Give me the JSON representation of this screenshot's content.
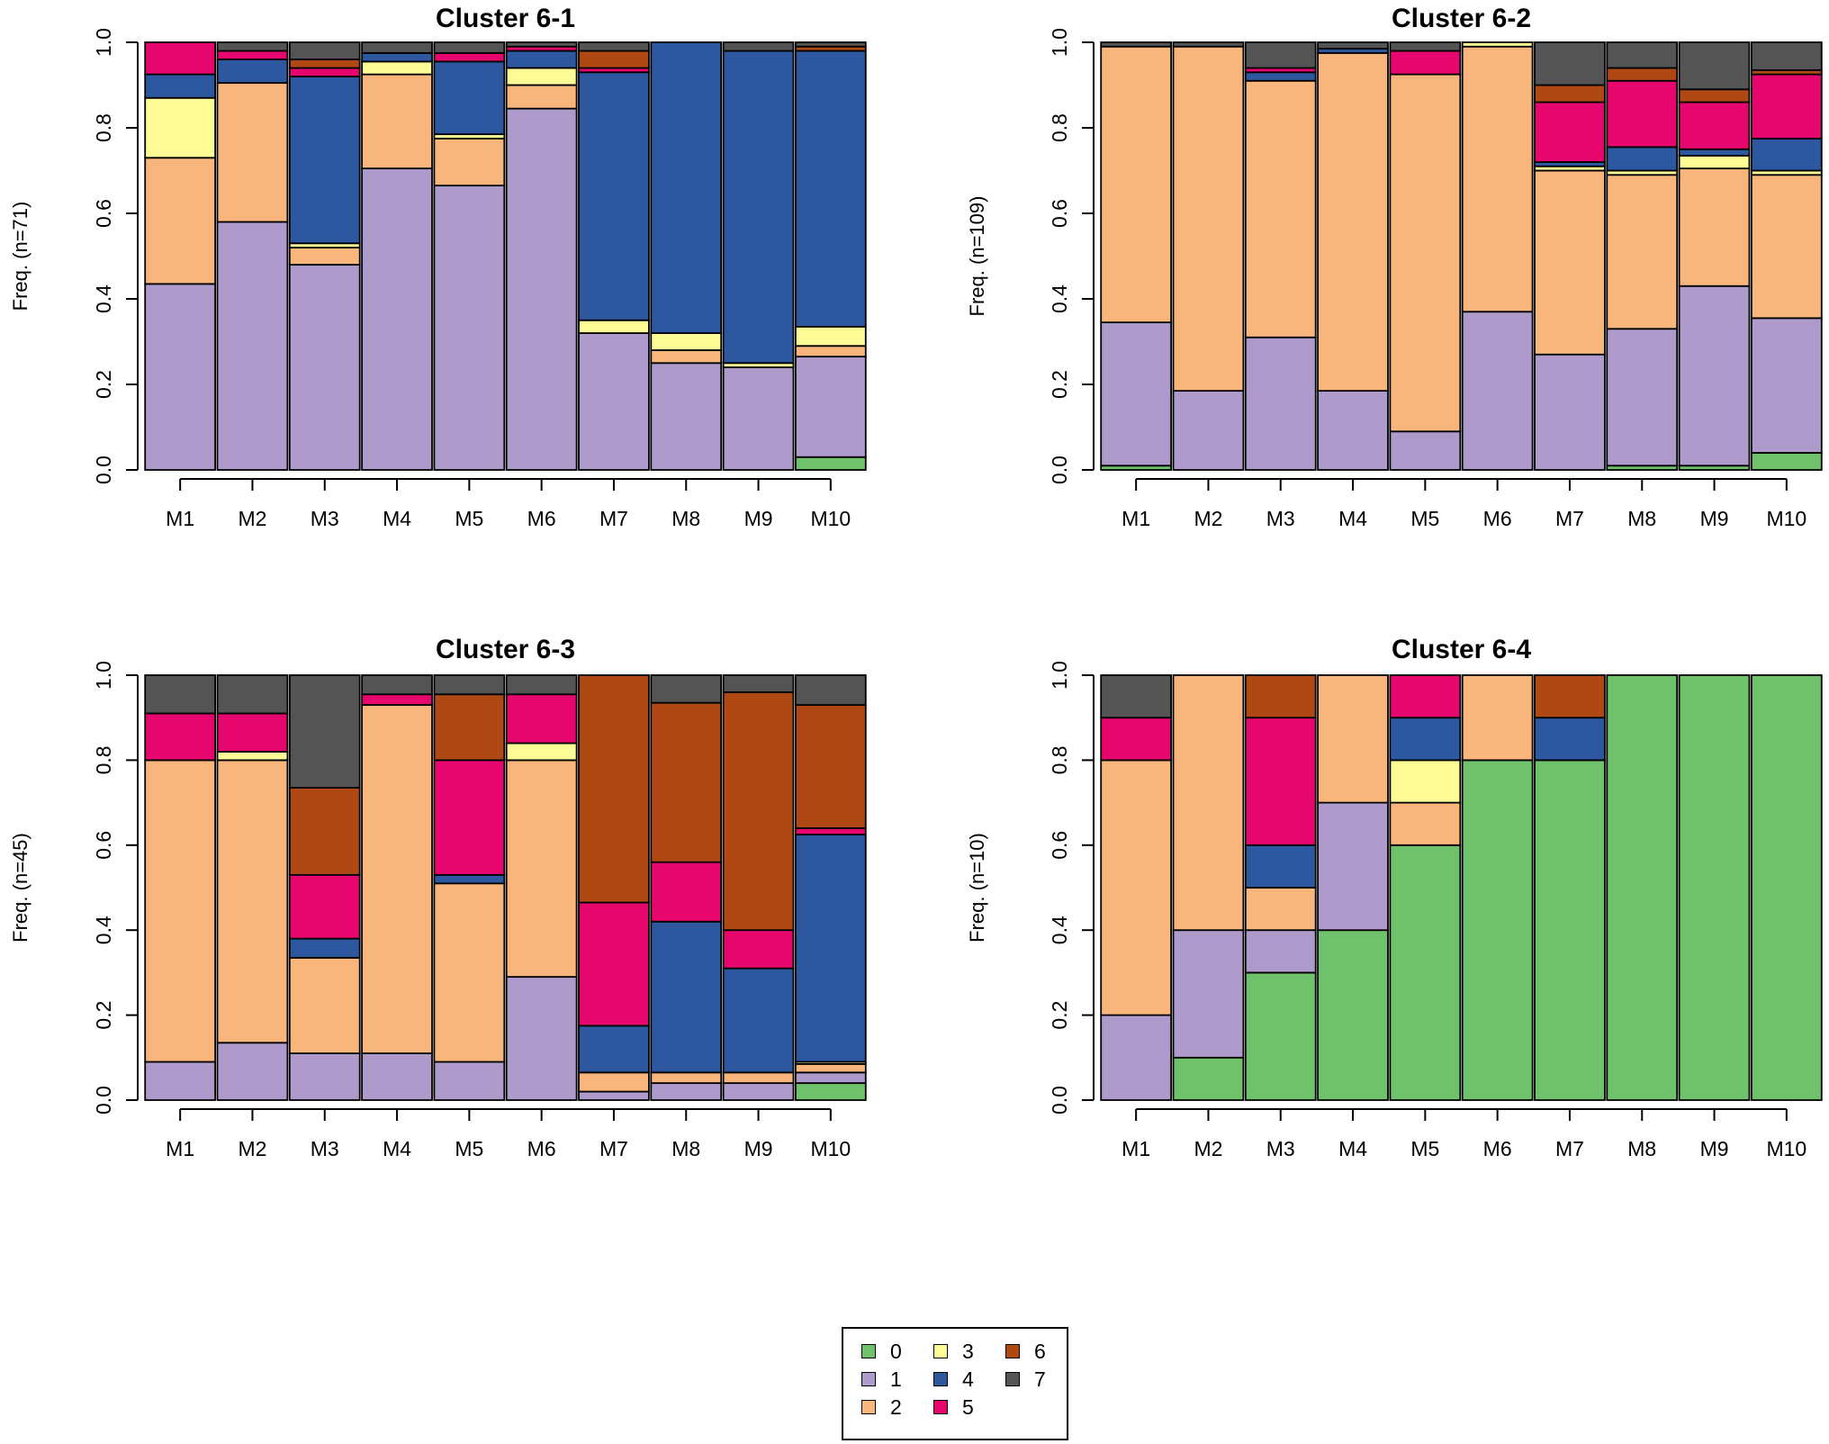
{
  "legend": {
    "items": [
      {
        "label": "0",
        "color": "#6fc26b"
      },
      {
        "label": "1",
        "color": "#ae9bcb"
      },
      {
        "label": "2",
        "color": "#f8b57c"
      },
      {
        "label": "3",
        "color": "#fcfb96"
      },
      {
        "label": "4",
        "color": "#2d58a0"
      },
      {
        "label": "5",
        "color": "#e6066e"
      },
      {
        "label": "6",
        "color": "#b04813"
      },
      {
        "label": "7",
        "color": "#545454"
      }
    ]
  },
  "chart_data": [
    {
      "type": "bar",
      "stacked": true,
      "title": "Cluster 6-1",
      "ylabel": "Freq. (n=71)",
      "ylim": [
        0,
        1
      ],
      "yticks": [
        "0.0",
        "0.2",
        "0.4",
        "0.6",
        "0.8",
        "1.0"
      ],
      "categories": [
        "M1",
        "M2",
        "M3",
        "M4",
        "M5",
        "M6",
        "M7",
        "M8",
        "M9",
        "M10"
      ],
      "series": [
        {
          "name": "0",
          "values": [
            0,
            0,
            0,
            0,
            0,
            0,
            0,
            0,
            0,
            0.03
          ]
        },
        {
          "name": "1",
          "values": [
            0.435,
            0.58,
            0.48,
            0.705,
            0.665,
            0.845,
            0.32,
            0.25,
            0.24,
            0.235
          ]
        },
        {
          "name": "2",
          "values": [
            0.295,
            0.325,
            0.04,
            0.22,
            0.11,
            0.055,
            0,
            0.03,
            0,
            0.025
          ]
        },
        {
          "name": "3",
          "values": [
            0.14,
            0,
            0.01,
            0.03,
            0.01,
            0.04,
            0.03,
            0.04,
            0.01,
            0.045
          ]
        },
        {
          "name": "4",
          "values": [
            0.055,
            0.055,
            0.39,
            0.02,
            0.17,
            0.04,
            0.58,
            0.68,
            0.73,
            0.645
          ]
        },
        {
          "name": "5",
          "values": [
            0.075,
            0.02,
            0.02,
            0,
            0.02,
            0.01,
            0.01,
            0,
            0,
            0
          ]
        },
        {
          "name": "6",
          "values": [
            0,
            0,
            0.02,
            0,
            0,
            0,
            0.04,
            0,
            0,
            0.01
          ]
        },
        {
          "name": "7",
          "values": [
            0,
            0.02,
            0.04,
            0.025,
            0.025,
            0.01,
            0.02,
            0,
            0.02,
            0.01
          ]
        }
      ]
    },
    {
      "type": "bar",
      "stacked": true,
      "title": "Cluster 6-2",
      "ylabel": "Freq. (n=109)",
      "ylim": [
        0,
        1
      ],
      "yticks": [
        "0.0",
        "0.2",
        "0.4",
        "0.6",
        "0.8",
        "1.0"
      ],
      "categories": [
        "M1",
        "M2",
        "M3",
        "M4",
        "M5",
        "M6",
        "M7",
        "M8",
        "M9",
        "M10"
      ],
      "series": [
        {
          "name": "0",
          "values": [
            0.01,
            0,
            0,
            0,
            0,
            0,
            0,
            0.01,
            0.01,
            0.04
          ]
        },
        {
          "name": "1",
          "values": [
            0.335,
            0.185,
            0.31,
            0.185,
            0.09,
            0.37,
            0.27,
            0.32,
            0.42,
            0.315
          ]
        },
        {
          "name": "2",
          "values": [
            0.645,
            0.805,
            0.6,
            0.79,
            0.835,
            0.62,
            0.43,
            0.36,
            0.275,
            0.335
          ]
        },
        {
          "name": "3",
          "values": [
            0,
            0,
            0,
            0,
            0,
            0.01,
            0.01,
            0.01,
            0.03,
            0.01
          ]
        },
        {
          "name": "4",
          "values": [
            0,
            0,
            0.02,
            0.01,
            0,
            0,
            0.01,
            0.055,
            0.015,
            0.075
          ]
        },
        {
          "name": "5",
          "values": [
            0,
            0,
            0.01,
            0,
            0.055,
            0,
            0.14,
            0.155,
            0.11,
            0.15
          ]
        },
        {
          "name": "6",
          "values": [
            0,
            0,
            0,
            0,
            0,
            0,
            0.04,
            0.03,
            0.03,
            0.01
          ]
        },
        {
          "name": "7",
          "values": [
            0.01,
            0.01,
            0.06,
            0.015,
            0.02,
            0,
            0.1,
            0.06,
            0.11,
            0.065
          ]
        }
      ]
    },
    {
      "type": "bar",
      "stacked": true,
      "title": "Cluster 6-3",
      "ylabel": "Freq. (n=45)",
      "ylim": [
        0,
        1
      ],
      "yticks": [
        "0.0",
        "0.2",
        "0.4",
        "0.6",
        "0.8",
        "1.0"
      ],
      "categories": [
        "M1",
        "M2",
        "M3",
        "M4",
        "M5",
        "M6",
        "M7",
        "M8",
        "M9",
        "M10"
      ],
      "series": [
        {
          "name": "0",
          "values": [
            0,
            0,
            0,
            0,
            0,
            0,
            0,
            0,
            0,
            0.04
          ]
        },
        {
          "name": "1",
          "values": [
            0.09,
            0.135,
            0.11,
            0.11,
            0.09,
            0.29,
            0.02,
            0.04,
            0.04,
            0.025
          ]
        },
        {
          "name": "2",
          "values": [
            0.71,
            0.665,
            0.225,
            0.82,
            0.42,
            0.51,
            0.045,
            0.025,
            0.025,
            0.02
          ]
        },
        {
          "name": "3",
          "values": [
            0,
            0.02,
            0,
            0,
            0,
            0.04,
            0,
            0,
            0,
            0.005
          ]
        },
        {
          "name": "4",
          "values": [
            0,
            0,
            0.045,
            0,
            0.02,
            0,
            0.11,
            0.355,
            0.245,
            0.535
          ]
        },
        {
          "name": "5",
          "values": [
            0.11,
            0.09,
            0.15,
            0.025,
            0.27,
            0.115,
            0.29,
            0.14,
            0.09,
            0.015
          ]
        },
        {
          "name": "6",
          "values": [
            0,
            0,
            0.205,
            0,
            0.155,
            0,
            0.535,
            0.375,
            0.56,
            0.29
          ]
        },
        {
          "name": "7",
          "values": [
            0.09,
            0.09,
            0.265,
            0.045,
            0.045,
            0.045,
            0,
            0.065,
            0.04,
            0.07
          ]
        }
      ]
    },
    {
      "type": "bar",
      "stacked": true,
      "title": "Cluster 6-4",
      "ylabel": "Freq. (n=10)",
      "ylim": [
        0,
        1
      ],
      "yticks": [
        "0.0",
        "0.2",
        "0.4",
        "0.6",
        "0.8",
        "1.0"
      ],
      "categories": [
        "M1",
        "M2",
        "M3",
        "M4",
        "M5",
        "M6",
        "M7",
        "M8",
        "M9",
        "M10"
      ],
      "series": [
        {
          "name": "0",
          "values": [
            0,
            0.1,
            0.3,
            0.4,
            0.6,
            0.8,
            0.8,
            1.0,
            1.0,
            1.0
          ]
        },
        {
          "name": "1",
          "values": [
            0.2,
            0.3,
            0.1,
            0.3,
            0,
            0,
            0,
            0,
            0,
            0
          ]
        },
        {
          "name": "2",
          "values": [
            0.6,
            0.6,
            0.1,
            0.3,
            0.1,
            0.2,
            0,
            0,
            0,
            0
          ]
        },
        {
          "name": "3",
          "values": [
            0,
            0,
            0,
            0,
            0.1,
            0,
            0,
            0,
            0,
            0
          ]
        },
        {
          "name": "4",
          "values": [
            0,
            0,
            0.1,
            0,
            0.1,
            0,
            0.1,
            0,
            0,
            0
          ]
        },
        {
          "name": "5",
          "values": [
            0.1,
            0,
            0.3,
            0,
            0.1,
            0,
            0,
            0,
            0,
            0
          ]
        },
        {
          "name": "6",
          "values": [
            0,
            0,
            0.1,
            0,
            0,
            0,
            0.1,
            0,
            0,
            0
          ]
        },
        {
          "name": "7",
          "values": [
            0.1,
            0,
            0,
            0,
            0,
            0,
            0,
            0,
            0,
            0
          ]
        }
      ]
    }
  ]
}
